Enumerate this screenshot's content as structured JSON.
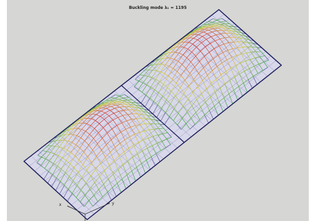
{
  "figure": {
    "title": "Buckling mode λ₁ = 1195",
    "axis_labels": {
      "left": "x",
      "right": "y"
    },
    "colors": {
      "background": "#d6d6d4",
      "mesh": "#5a5a9a",
      "outline": "#1a1a5a",
      "plate_fill": "#d8d8ea",
      "low": "#3aa04a",
      "mid": "#d8d040",
      "high": "#d03030"
    }
  }
}
